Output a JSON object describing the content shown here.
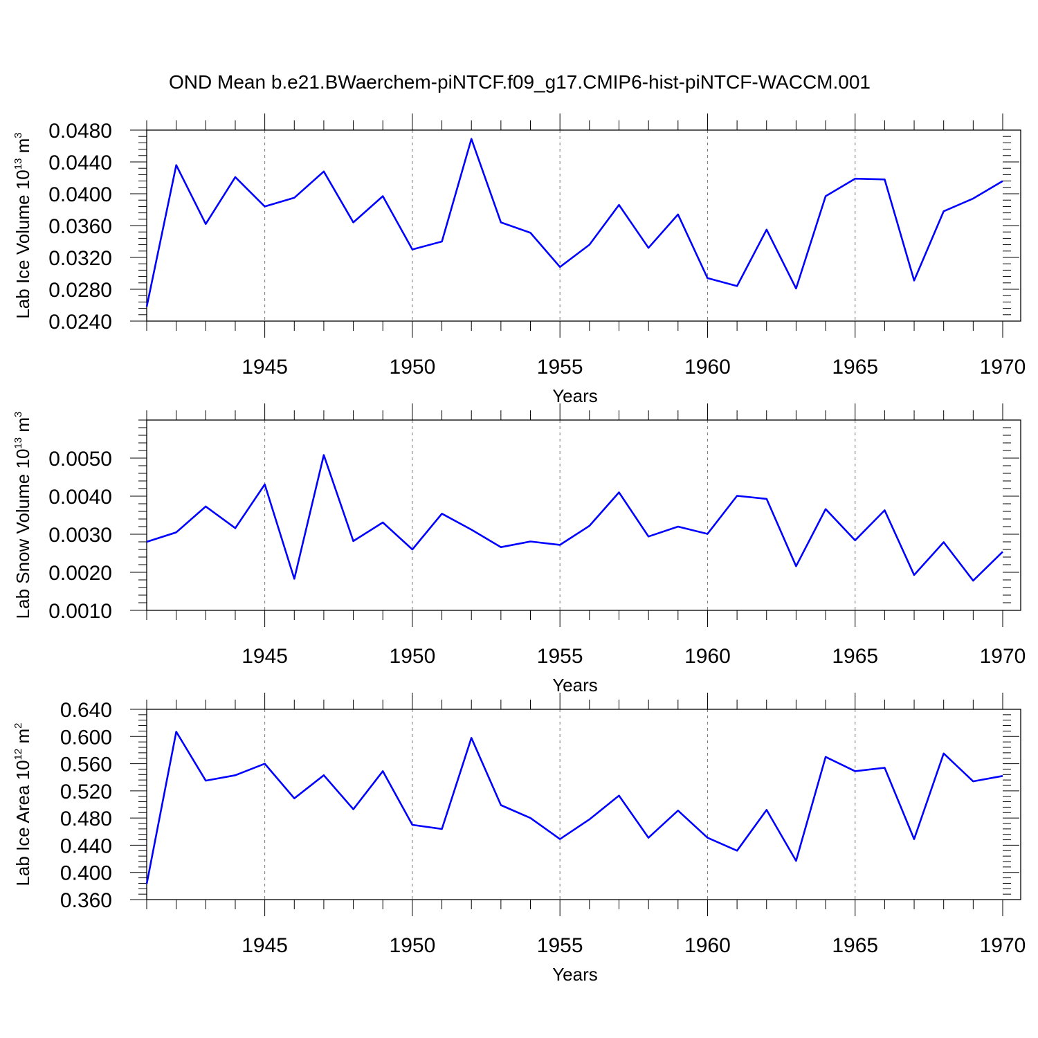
{
  "figure_title": "OND Mean b.e21.BWaerchem-piNTCF.f09_g17.CMIP6-hist-piNTCF-WACCM.001",
  "colors": {
    "line": "#0000ff",
    "axis": "#000000",
    "grid": "#777777"
  },
  "chart_data": [
    {
      "type": "line",
      "title": "OND Mean b.e21.BWaerchem-piNTCF.f09_g17.CMIP6-hist-piNTCF-WACCM.001",
      "xlabel": "Years",
      "ylabel": {
        "text": "Lab Ice Volume 10",
        "exp1": "13",
        "unit": " m",
        "exp2": "3"
      },
      "xlim": [
        1941,
        1970
      ],
      "ylim": [
        0.024,
        0.048
      ],
      "xticks": [
        1945,
        1950,
        1955,
        1960,
        1965,
        1970
      ],
      "yticks": [
        "0.0240",
        "0.0280",
        "0.0320",
        "0.0360",
        "0.0400",
        "0.0440",
        "0.0480"
      ],
      "grid": "dashed-vertical",
      "x": [
        1941,
        1942,
        1943,
        1944,
        1945,
        1946,
        1947,
        1948,
        1949,
        1950,
        1951,
        1952,
        1953,
        1954,
        1955,
        1956,
        1957,
        1958,
        1959,
        1960,
        1961,
        1962,
        1963,
        1964,
        1965,
        1966,
        1967,
        1968,
        1969,
        1970
      ],
      "values": [
        0.0258,
        0.0436,
        0.0362,
        0.0421,
        0.0384,
        0.0395,
        0.0428,
        0.0364,
        0.0397,
        0.033,
        0.034,
        0.0469,
        0.0364,
        0.0351,
        0.0308,
        0.0336,
        0.0386,
        0.0332,
        0.0374,
        0.0294,
        0.0284,
        0.0355,
        0.0281,
        0.0397,
        0.0419,
        0.0418,
        0.0291,
        0.0378,
        0.0394,
        0.0416
      ]
    },
    {
      "type": "line",
      "xlabel": "Years",
      "ylabel": {
        "text": "Lab Snow Volume 10",
        "exp1": "13",
        "unit": " m",
        "exp2": "3"
      },
      "xlim": [
        1941,
        1970
      ],
      "ylim": [
        0.001,
        0.006
      ],
      "xticks": [
        1945,
        1950,
        1955,
        1960,
        1965,
        1970
      ],
      "yticks": [
        "0.0010",
        "0.0020",
        "0.0030",
        "0.0040",
        "0.0050"
      ],
      "grid": "dashed-vertical",
      "x": [
        1941,
        1942,
        1943,
        1944,
        1945,
        1946,
        1947,
        1948,
        1949,
        1950,
        1951,
        1952,
        1953,
        1954,
        1955,
        1956,
        1957,
        1958,
        1959,
        1960,
        1961,
        1962,
        1963,
        1964,
        1965,
        1966,
        1967,
        1968,
        1969,
        1970
      ],
      "values": [
        0.0028,
        0.00305,
        0.00373,
        0.00316,
        0.00431,
        0.00183,
        0.00508,
        0.00282,
        0.00331,
        0.0026,
        0.00354,
        0.00312,
        0.00266,
        0.00281,
        0.00272,
        0.00322,
        0.0041,
        0.00294,
        0.0032,
        0.00301,
        0.00401,
        0.00393,
        0.00216,
        0.00366,
        0.00284,
        0.00363,
        0.00193,
        0.00279,
        0.00178,
        0.00254
      ]
    },
    {
      "type": "line",
      "xlabel": "Years",
      "ylabel": {
        "text": "Lab Ice Area 10",
        "exp1": "12",
        "unit": " m",
        "exp2": "2"
      },
      "xlim": [
        1941,
        1970
      ],
      "ylim": [
        0.36,
        0.64
      ],
      "xticks": [
        1945,
        1950,
        1955,
        1960,
        1965,
        1970
      ],
      "yticks": [
        "0.360",
        "0.400",
        "0.440",
        "0.480",
        "0.520",
        "0.560",
        "0.600",
        "0.640"
      ],
      "grid": "dashed-vertical",
      "x": [
        1941,
        1942,
        1943,
        1944,
        1945,
        1946,
        1947,
        1948,
        1949,
        1950,
        1951,
        1952,
        1953,
        1954,
        1955,
        1956,
        1957,
        1958,
        1959,
        1960,
        1961,
        1962,
        1963,
        1964,
        1965,
        1966,
        1967,
        1968,
        1969,
        1970
      ],
      "values": [
        0.383,
        0.607,
        0.535,
        0.543,
        0.56,
        0.509,
        0.543,
        0.493,
        0.549,
        0.47,
        0.464,
        0.598,
        0.499,
        0.48,
        0.449,
        0.478,
        0.513,
        0.451,
        0.491,
        0.451,
        0.432,
        0.492,
        0.417,
        0.57,
        0.549,
        0.554,
        0.449,
        0.575,
        0.534,
        0.542
      ]
    }
  ]
}
